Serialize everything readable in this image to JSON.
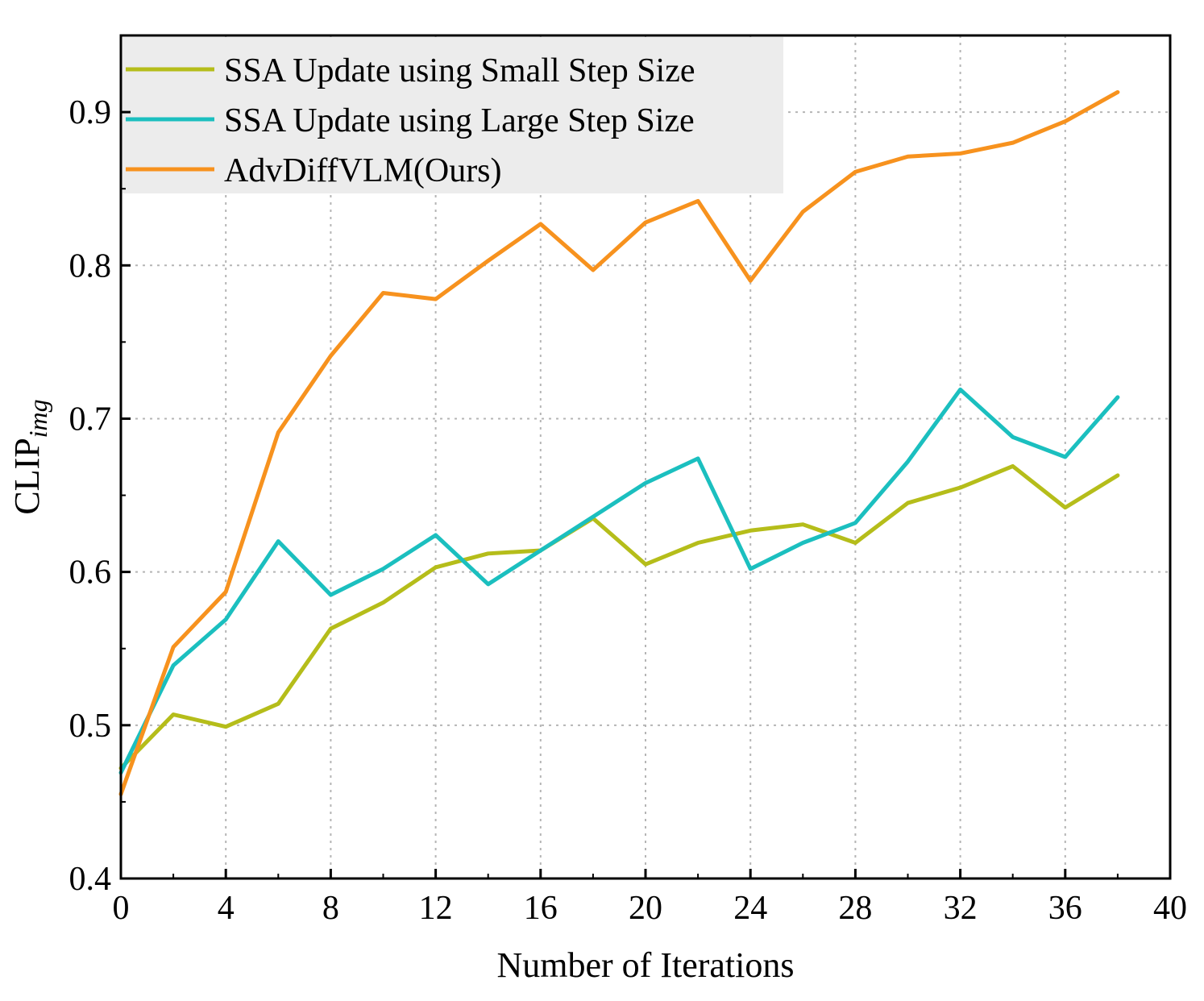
{
  "chart_data": {
    "type": "line",
    "xlabel": "Number of Iterations",
    "ylabel": {
      "main": "CLIP",
      "sub": "img"
    },
    "xlim": [
      0,
      40
    ],
    "ylim": [
      0.4,
      0.95
    ],
    "xticks": [
      0,
      4,
      8,
      12,
      16,
      20,
      24,
      28,
      32,
      36,
      40
    ],
    "yticks": [
      0.4,
      0.5,
      0.6,
      0.7,
      0.8,
      0.9
    ],
    "xtick_labels": [
      "0",
      "4",
      "8",
      "12",
      "16",
      "20",
      "24",
      "28",
      "32",
      "36",
      "40"
    ],
    "ytick_labels": [
      "0.4",
      "0.5",
      "0.6",
      "0.7",
      "0.8",
      "0.9"
    ],
    "grid": true,
    "legend_position": "top-left",
    "x": [
      0,
      2,
      4,
      6,
      8,
      10,
      12,
      14,
      16,
      18,
      20,
      22,
      24,
      26,
      28,
      30,
      32,
      34,
      36,
      38
    ],
    "series": [
      {
        "name": "SSA Update using Small Step Size",
        "color": "#b5bd1a",
        "values": [
          0.472,
          0.507,
          0.499,
          0.514,
          0.563,
          0.58,
          0.603,
          0.612,
          0.614,
          0.635,
          0.605,
          0.619,
          0.627,
          0.631,
          0.619,
          0.645,
          0.655,
          0.669,
          0.642,
          0.663
        ]
      },
      {
        "name": "SSA Update using Large Step Size",
        "color": "#1bbfbf",
        "values": [
          0.469,
          0.539,
          0.569,
          0.62,
          0.585,
          0.602,
          0.624,
          0.592,
          0.614,
          0.636,
          0.658,
          0.674,
          0.602,
          0.619,
          0.632,
          0.672,
          0.719,
          0.688,
          0.675,
          0.714
        ]
      },
      {
        "name": "AdvDiffVLM(Ours)",
        "color": "#f7921e",
        "values": [
          0.455,
          0.551,
          0.587,
          0.691,
          0.741,
          0.782,
          0.778,
          0.803,
          0.827,
          0.797,
          0.828,
          0.842,
          0.79,
          0.835,
          0.861,
          0.871,
          0.873,
          0.88,
          0.894,
          0.913
        ]
      }
    ]
  }
}
